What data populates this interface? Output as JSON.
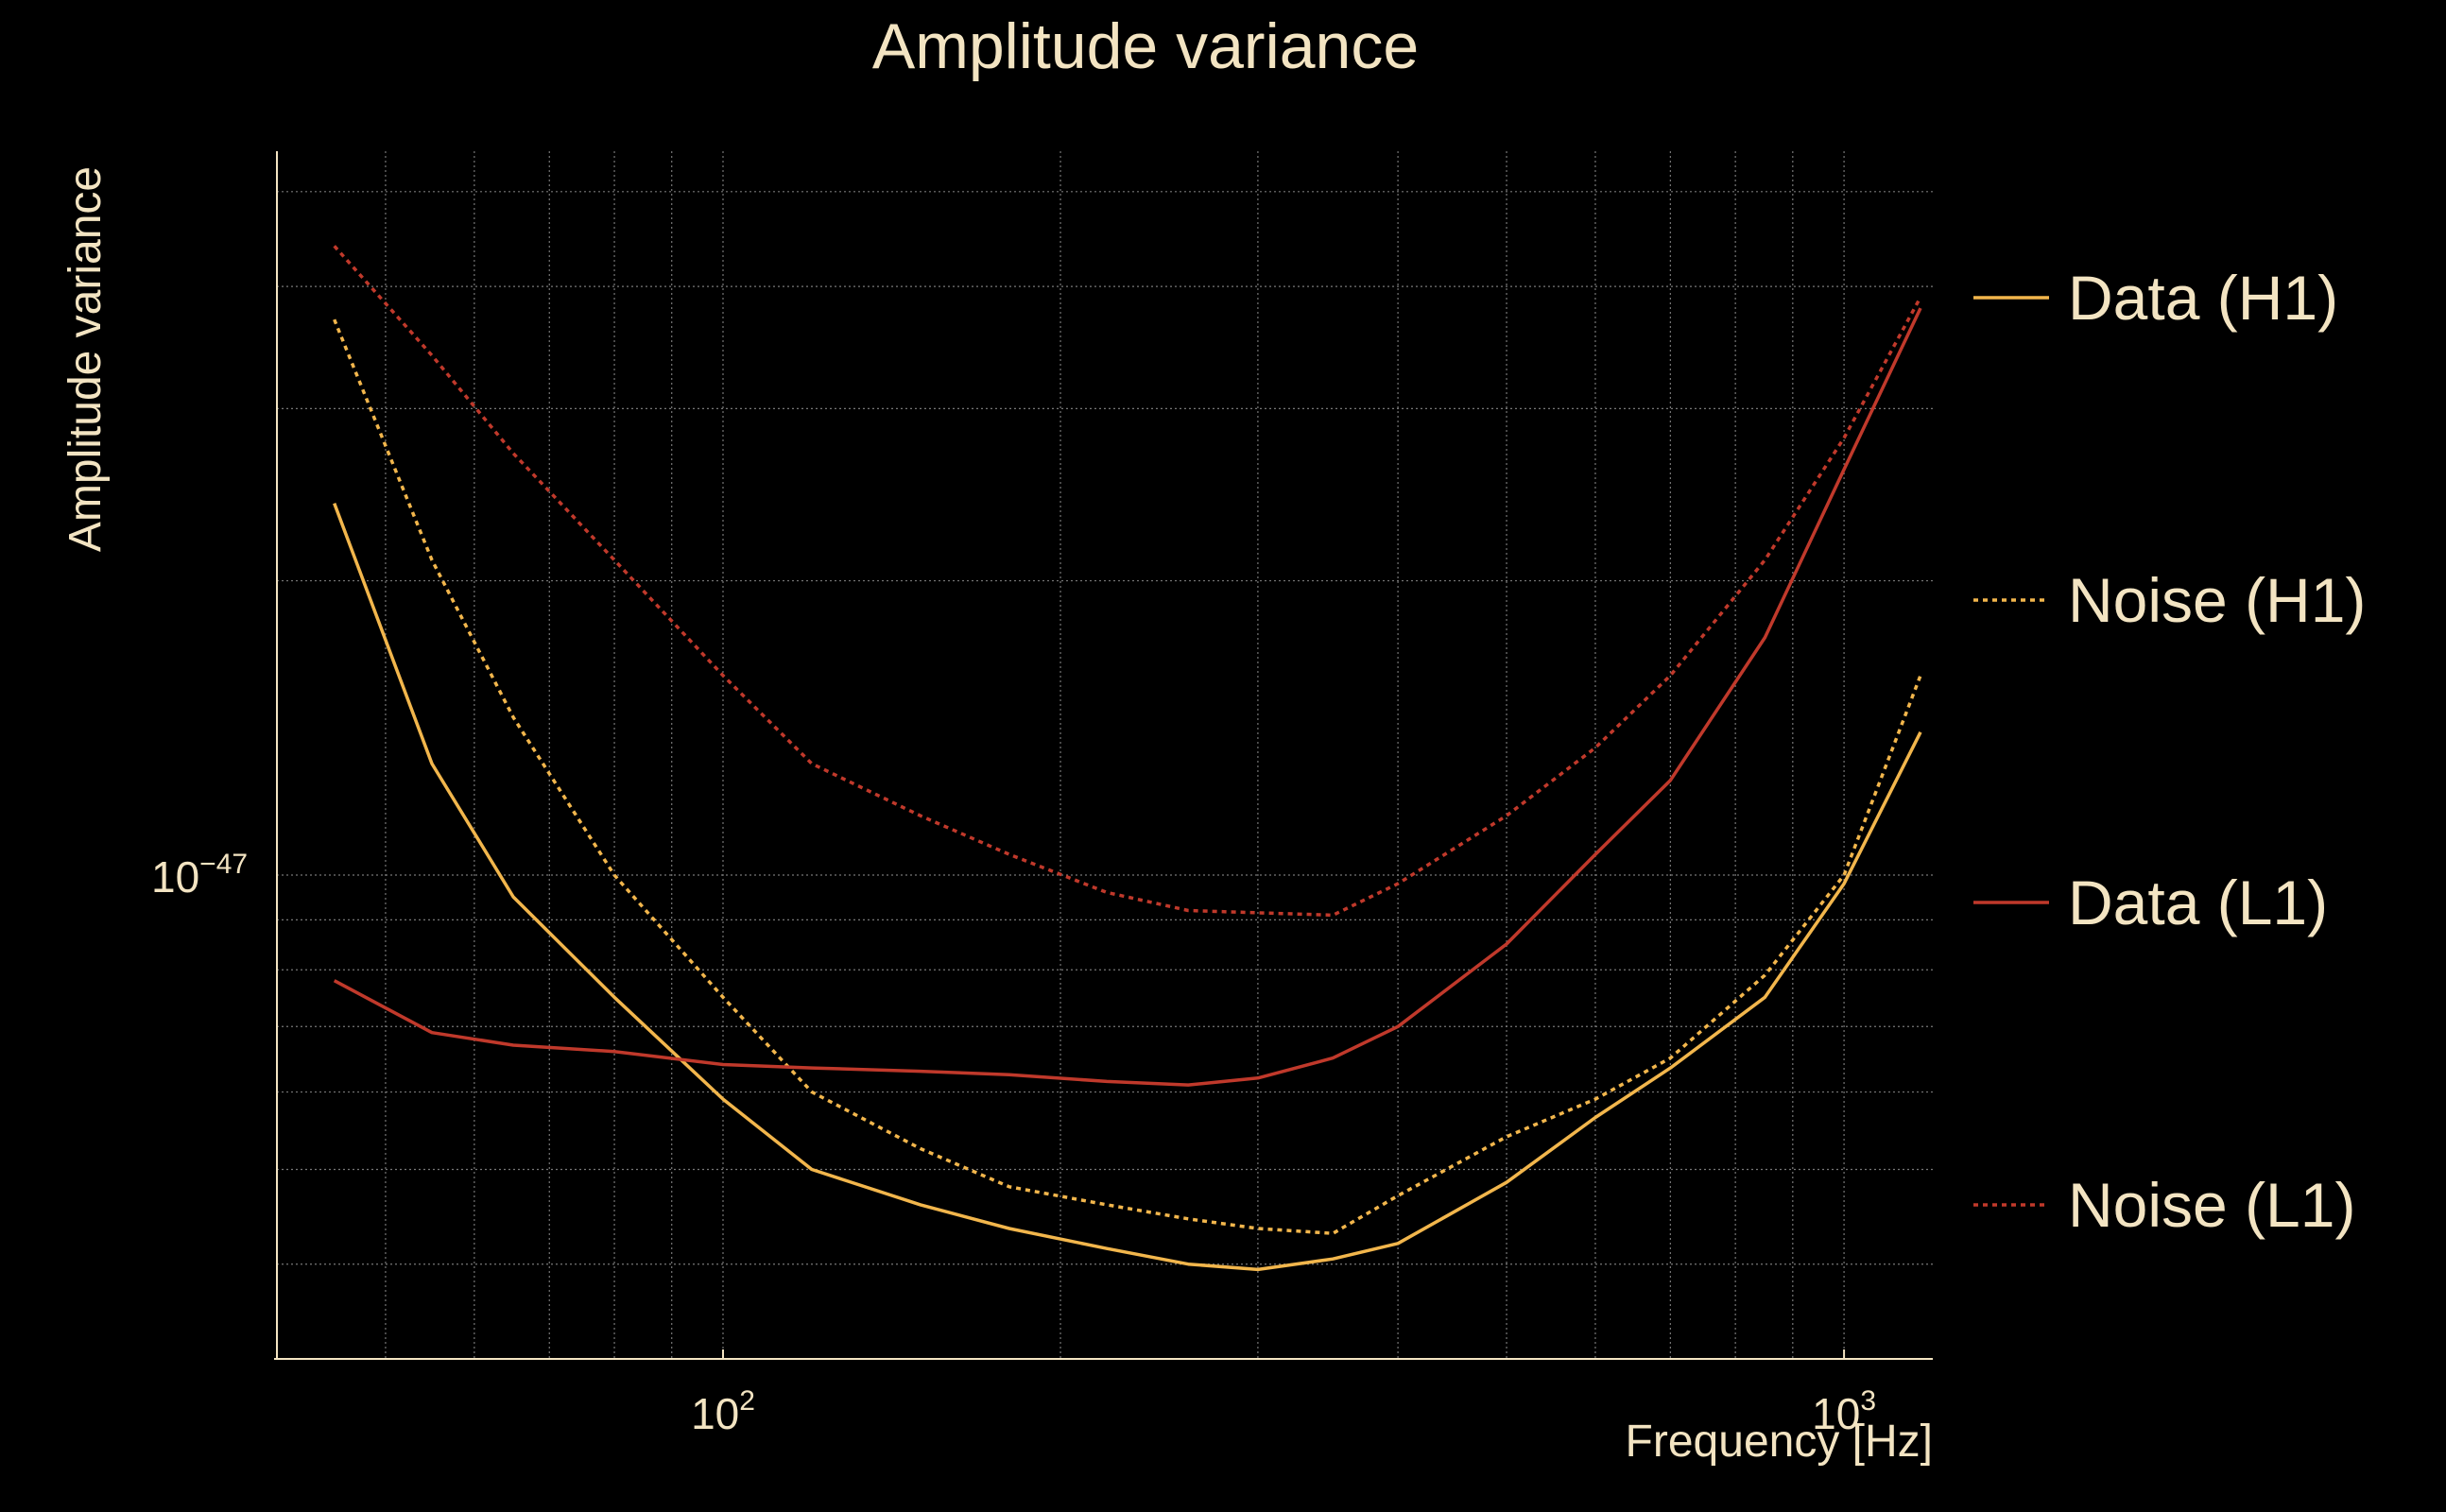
{
  "chart_data": {
    "type": "line",
    "title": "Amplitude variance",
    "xlabel": "Frequency [Hz]",
    "ylabel": "Amplitude variance",
    "x_scale": "log",
    "y_scale": "log",
    "xlim": [
      40,
      1200
    ],
    "ylim": [
      3.2e-48,
      5.5e-47
    ],
    "grid": true,
    "legend_position": "right",
    "x_major_ticks": [
      {
        "value": 100,
        "base": "10",
        "exp": "2"
      },
      {
        "value": 1000,
        "base": "10",
        "exp": "3"
      }
    ],
    "y_major_ticks": [
      {
        "value": 1e-47,
        "base": "10",
        "exp": "−47"
      }
    ],
    "series": [
      {
        "name": "Data (H1)",
        "color": "#f2b64c",
        "style": "solid",
        "x": [
          45,
          55,
          65,
          80,
          100,
          120,
          150,
          180,
          220,
          260,
          300,
          350,
          400,
          500,
          600,
          700,
          850,
          1000,
          1170
        ],
        "y": [
          2.4e-47,
          1.3e-47,
          9.5e-48,
          7.5e-48,
          5.9e-48,
          5e-48,
          4.6e-48,
          4.35e-48,
          4.15e-48,
          4e-48,
          3.95e-48,
          4.05e-48,
          4.2e-48,
          4.85e-48,
          5.65e-48,
          6.35e-48,
          7.5e-48,
          9.8e-48,
          1.4e-47
        ]
      },
      {
        "name": "Noise (H1)",
        "color": "#f2b64c",
        "style": "dotted",
        "x": [
          45,
          55,
          65,
          80,
          100,
          120,
          150,
          180,
          220,
          260,
          300,
          350,
          400,
          500,
          600,
          700,
          850,
          1000,
          1170
        ],
        "y": [
          3.7e-47,
          2.1e-47,
          1.45e-47,
          1e-47,
          7.5e-48,
          6e-48,
          5.25e-48,
          4.8e-48,
          4.6e-48,
          4.45e-48,
          4.35e-48,
          4.3e-48,
          4.7e-48,
          5.4e-48,
          5.9e-48,
          6.5e-48,
          7.9e-48,
          1e-47,
          1.6e-47
        ]
      },
      {
        "name": "Data (L1)",
        "color": "#c0392b",
        "style": "solid",
        "x": [
          45,
          55,
          65,
          80,
          100,
          120,
          150,
          180,
          220,
          260,
          300,
          350,
          400,
          500,
          600,
          700,
          850,
          1000,
          1170
        ],
        "y": [
          7.8e-48,
          6.9e-48,
          6.7e-48,
          6.6e-48,
          6.4e-48,
          6.35e-48,
          6.3e-48,
          6.25e-48,
          6.15e-48,
          6.1e-48,
          6.2e-48,
          6.5e-48,
          7e-48,
          8.5e-48,
          1.05e-47,
          1.25e-47,
          1.75e-47,
          2.6e-47,
          3.8e-47
        ]
      },
      {
        "name": "Noise (L1)",
        "color": "#c0392b",
        "style": "dotted",
        "x": [
          45,
          55,
          65,
          80,
          100,
          120,
          150,
          180,
          220,
          260,
          300,
          350,
          400,
          500,
          600,
          700,
          850,
          1000,
          1170
        ],
        "y": [
          4.4e-47,
          3.4e-47,
          2.7e-47,
          2.1e-47,
          1.6e-47,
          1.3e-47,
          1.15e-47,
          1.05e-47,
          9.6e-48,
          9.2e-48,
          9.15e-48,
          9.1e-48,
          9.8e-48,
          1.15e-47,
          1.35e-47,
          1.6e-47,
          2.1e-47,
          2.8e-47,
          3.9e-47
        ]
      }
    ]
  }
}
